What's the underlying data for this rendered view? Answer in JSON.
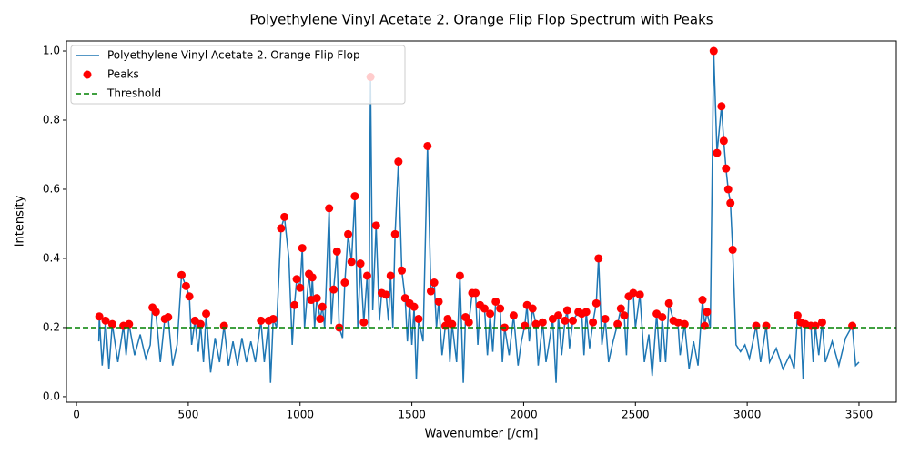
{
  "chart_data": {
    "type": "line",
    "title": "Polyethylene Vinyl Acetate 2. Orange Flip Flop Spectrum with Peaks",
    "xlabel": "Wavenumber [/cm]",
    "ylabel": "Intensity",
    "xlim": [
      -45,
      3667
    ],
    "ylim": [
      -0.016,
      1.029
    ],
    "xticks": [
      0,
      500,
      1000,
      1500,
      2000,
      2500,
      3000,
      3500
    ],
    "yticks": [
      {
        "value": 0,
        "label": "0.0"
      },
      {
        "value": 0.2,
        "label": "0.2"
      },
      {
        "value": 0.4,
        "label": "0.4"
      },
      {
        "value": 0.6,
        "label": "0.6"
      },
      {
        "value": 0.8,
        "label": "0.8"
      },
      {
        "value": 1,
        "label": "1.0"
      }
    ],
    "legend": "upper left",
    "series": [
      {
        "name": "Polyethylene Vinyl Acetate 2. Orange Flip Flop",
        "type": "line",
        "color": "#1f77b4",
        "x": [
          100,
          102,
          115,
          130,
          145,
          160,
          185,
          210,
          222,
          235,
          260,
          285,
          310,
          330,
          340,
          355,
          375,
          395,
          410,
          430,
          450,
          470,
          490,
          505,
          515,
          530,
          545,
          555,
          568,
          580,
          600,
          620,
          640,
          660,
          680,
          700,
          720,
          740,
          760,
          780,
          800,
          825,
          840,
          860,
          868,
          880,
          895,
          915,
          930,
          950,
          965,
          975,
          985,
          1000,
          1010,
          1020,
          1040,
          1050,
          1055,
          1065,
          1075,
          1090,
          1100,
          1110,
          1130,
          1140,
          1150,
          1165,
          1175,
          1190,
          1200,
          1215,
          1230,
          1245,
          1258,
          1270,
          1285,
          1300,
          1308,
          1315,
          1325,
          1340,
          1355,
          1365,
          1385,
          1395,
          1405,
          1415,
          1425,
          1440,
          1455,
          1470,
          1480,
          1490,
          1500,
          1510,
          1520,
          1530,
          1550,
          1570,
          1585,
          1600,
          1610,
          1620,
          1635,
          1650,
          1660,
          1670,
          1680,
          1700,
          1715,
          1730,
          1740,
          1755,
          1770,
          1785,
          1795,
          1805,
          1825,
          1838,
          1850,
          1862,
          1875,
          1895,
          1905,
          1915,
          1935,
          1955,
          1975,
          1990,
          2005,
          2015,
          2025,
          2040,
          2055,
          2065,
          2085,
          2100,
          2115,
          2130,
          2145,
          2155,
          2170,
          2185,
          2195,
          2205,
          2220,
          2245,
          2260,
          2270,
          2280,
          2295,
          2310,
          2325,
          2335,
          2350,
          2365,
          2380,
          2400,
          2420,
          2435,
          2450,
          2460,
          2470,
          2490,
          2500,
          2520,
          2540,
          2560,
          2575,
          2595,
          2610,
          2620,
          2635,
          2650,
          2670,
          2690,
          2700,
          2720,
          2740,
          2760,
          2780,
          2800,
          2810,
          2820,
          2835,
          2850,
          2865,
          2885,
          2895,
          2905,
          2915,
          2925,
          2935,
          2950,
          2970,
          2990,
          3010,
          3040,
          3060,
          3085,
          3100,
          3130,
          3160,
          3190,
          3210,
          3225,
          3240,
          3250,
          3260,
          3285,
          3295,
          3305,
          3320,
          3335,
          3350,
          3380,
          3410,
          3440,
          3470,
          3485,
          3500
        ],
        "values": [
          0.16,
          0.232,
          0.09,
          0.22,
          0.08,
          0.21,
          0.1,
          0.205,
          0.12,
          0.21,
          0.12,
          0.18,
          0.11,
          0.15,
          0.258,
          0.245,
          0.1,
          0.225,
          0.23,
          0.09,
          0.15,
          0.352,
          0.32,
          0.29,
          0.15,
          0.22,
          0.13,
          0.21,
          0.1,
          0.24,
          0.07,
          0.17,
          0.1,
          0.205,
          0.09,
          0.16,
          0.09,
          0.17,
          0.1,
          0.16,
          0.1,
          0.22,
          0.1,
          0.22,
          0.04,
          0.225,
          0.2,
          0.487,
          0.52,
          0.4,
          0.15,
          0.265,
          0.34,
          0.315,
          0.43,
          0.2,
          0.355,
          0.28,
          0.345,
          0.2,
          0.285,
          0.225,
          0.26,
          0.2,
          0.545,
          0.21,
          0.31,
          0.42,
          0.2,
          0.17,
          0.33,
          0.47,
          0.39,
          0.58,
          0.2,
          0.385,
          0.215,
          0.35,
          0.2,
          0.925,
          0.25,
          0.495,
          0.22,
          0.3,
          0.295,
          0.22,
          0.35,
          0.2,
          0.47,
          0.68,
          0.365,
          0.285,
          0.16,
          0.27,
          0.15,
          0.26,
          0.05,
          0.225,
          0.16,
          0.725,
          0.305,
          0.33,
          0.2,
          0.275,
          0.12,
          0.205,
          0.225,
          0.1,
          0.21,
          0.1,
          0.35,
          0.04,
          0.23,
          0.215,
          0.3,
          0.3,
          0.15,
          0.265,
          0.255,
          0.12,
          0.24,
          0.13,
          0.275,
          0.255,
          0.1,
          0.2,
          0.12,
          0.235,
          0.09,
          0.16,
          0.205,
          0.265,
          0.16,
          0.255,
          0.21,
          0.09,
          0.215,
          0.1,
          0.16,
          0.225,
          0.04,
          0.235,
          0.12,
          0.22,
          0.25,
          0.14,
          0.22,
          0.245,
          0.24,
          0.12,
          0.245,
          0.14,
          0.215,
          0.27,
          0.4,
          0.15,
          0.225,
          0.1,
          0.16,
          0.21,
          0.255,
          0.235,
          0.12,
          0.29,
          0.3,
          0.2,
          0.295,
          0.1,
          0.18,
          0.06,
          0.24,
          0.1,
          0.23,
          0.1,
          0.27,
          0.22,
          0.215,
          0.12,
          0.21,
          0.08,
          0.16,
          0.09,
          0.28,
          0.205,
          0.245,
          0.2,
          1.0,
          0.705,
          0.84,
          0.74,
          0.66,
          0.6,
          0.56,
          0.425,
          0.15,
          0.13,
          0.15,
          0.11,
          0.205,
          0.1,
          0.205,
          0.1,
          0.14,
          0.08,
          0.12,
          0.08,
          0.235,
          0.215,
          0.05,
          0.21,
          0.205,
          0.1,
          0.205,
          0.12,
          0.215,
          0.1,
          0.16,
          0.09,
          0.17,
          0.205,
          0.09,
          0.1
        ]
      },
      {
        "name": "Peaks",
        "type": "scatter",
        "color": "red",
        "x": [
          102,
          130,
          160,
          210,
          235,
          340,
          355,
          395,
          410,
          470,
          490,
          505,
          530,
          555,
          580,
          660,
          825,
          860,
          880,
          915,
          930,
          975,
          985,
          1000,
          1010,
          1040,
          1050,
          1055,
          1075,
          1090,
          1100,
          1130,
          1150,
          1165,
          1175,
          1200,
          1215,
          1230,
          1245,
          1270,
          1285,
          1300,
          1315,
          1340,
          1365,
          1385,
          1405,
          1425,
          1440,
          1455,
          1470,
          1490,
          1510,
          1530,
          1570,
          1585,
          1600,
          1620,
          1650,
          1660,
          1680,
          1715,
          1740,
          1755,
          1770,
          1785,
          1805,
          1825,
          1850,
          1875,
          1895,
          1915,
          1955,
          2005,
          2015,
          2040,
          2055,
          2085,
          2130,
          2155,
          2185,
          2195,
          2220,
          2245,
          2260,
          2280,
          2310,
          2325,
          2335,
          2365,
          2420,
          2435,
          2450,
          2470,
          2490,
          2520,
          2595,
          2620,
          2650,
          2670,
          2690,
          2720,
          2800,
          2810,
          2820,
          2850,
          2865,
          2885,
          2895,
          2905,
          2915,
          2925,
          2935,
          3040,
          3085,
          3225,
          3240,
          3260,
          3285,
          3305,
          3335,
          3470
        ],
        "values": [
          0.232,
          0.22,
          0.21,
          0.205,
          0.21,
          0.258,
          0.245,
          0.225,
          0.23,
          0.352,
          0.32,
          0.29,
          0.22,
          0.21,
          0.24,
          0.205,
          0.22,
          0.22,
          0.225,
          0.487,
          0.52,
          0.265,
          0.34,
          0.315,
          0.43,
          0.355,
          0.28,
          0.345,
          0.285,
          0.225,
          0.26,
          0.545,
          0.31,
          0.42,
          0.2,
          0.33,
          0.47,
          0.39,
          0.58,
          0.385,
          0.215,
          0.35,
          0.925,
          0.495,
          0.3,
          0.295,
          0.35,
          0.47,
          0.68,
          0.365,
          0.285,
          0.27,
          0.26,
          0.225,
          0.725,
          0.305,
          0.33,
          0.275,
          0.205,
          0.225,
          0.21,
          0.35,
          0.23,
          0.215,
          0.3,
          0.3,
          0.265,
          0.255,
          0.24,
          0.275,
          0.255,
          0.2,
          0.235,
          0.205,
          0.265,
          0.255,
          0.21,
          0.215,
          0.225,
          0.235,
          0.22,
          0.25,
          0.22,
          0.245,
          0.24,
          0.245,
          0.215,
          0.27,
          0.4,
          0.225,
          0.21,
          0.255,
          0.235,
          0.29,
          0.3,
          0.295,
          0.24,
          0.23,
          0.27,
          0.22,
          0.215,
          0.21,
          0.28,
          0.205,
          0.245,
          1.0,
          0.705,
          0.84,
          0.74,
          0.66,
          0.6,
          0.56,
          0.425,
          0.205,
          0.205,
          0.235,
          0.215,
          0.21,
          0.205,
          0.205,
          0.215,
          0.205
        ]
      },
      {
        "name": "Threshold",
        "type": "hline",
        "color": "green",
        "value": 0.2,
        "linestyle": "dashed"
      }
    ]
  }
}
